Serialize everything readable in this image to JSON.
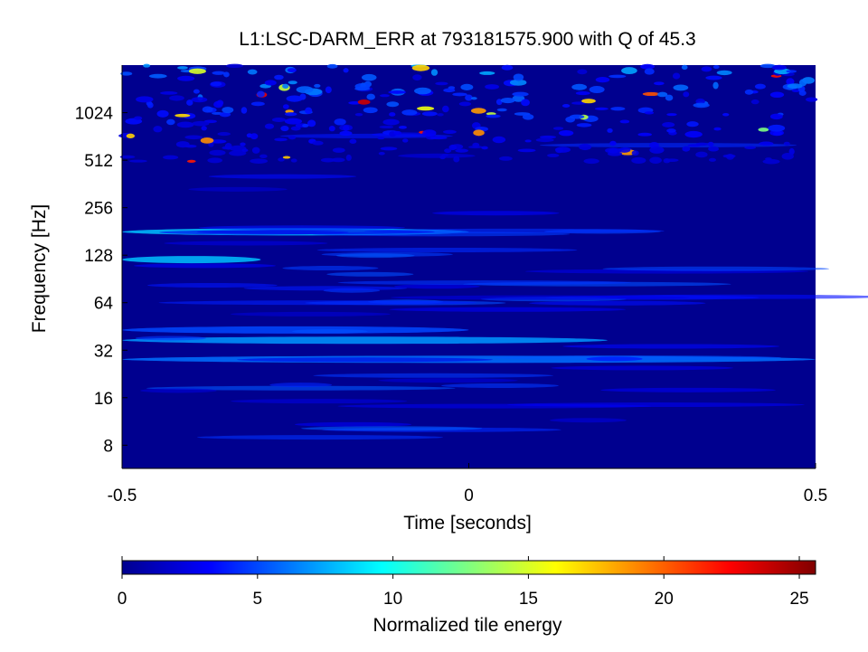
{
  "chart_data": {
    "type": "heatmap",
    "title": "L1:LSC-DARM_ERR at 793181575.900 with Q of 45.3",
    "xlabel": "Time [seconds]",
    "ylabel": "Frequency [Hz]",
    "x_scale": "linear",
    "y_scale": "log2",
    "xlim": [
      -0.5,
      0.5
    ],
    "ylim": [
      5.7,
      2050
    ],
    "x_ticks": [
      -0.5,
      0,
      0.5
    ],
    "x_tick_labels": [
      "-0.5",
      "0",
      "0.5"
    ],
    "y_ticks": [
      8,
      16,
      32,
      64,
      128,
      256,
      512,
      1024
    ],
    "y_tick_labels": [
      "8",
      "16",
      "32",
      "64",
      "128",
      "256",
      "512",
      "1024"
    ],
    "colormap": "jet",
    "colorbar": {
      "label": "Normalized tile energy",
      "range": [
        0,
        25.6
      ],
      "ticks": [
        0,
        5,
        10,
        15,
        20,
        25
      ],
      "tick_labels": [
        "0",
        "5",
        "10",
        "15",
        "20",
        "25"
      ],
      "position": "bottom"
    },
    "grid": false,
    "notable_features": [
      {
        "description": "broadband band near 37 Hz",
        "freq_hz": 37,
        "time_range": [
          -0.5,
          0.2
        ],
        "energy": 7
      },
      {
        "description": "band near 28 Hz",
        "freq_hz": 28,
        "time_range": [
          -0.5,
          0.5
        ],
        "energy": 6
      },
      {
        "description": "band near 43 Hz",
        "freq_hz": 43,
        "time_range": [
          -0.5,
          0.0
        ],
        "energy": 5
      },
      {
        "description": "band near 180 Hz",
        "freq_hz": 180,
        "time_range": [
          -0.5,
          0.0
        ],
        "energy": 8
      },
      {
        "description": "band near 120 Hz",
        "freq_hz": 120,
        "time_range": [
          -0.5,
          -0.3
        ],
        "energy": 8
      },
      {
        "description": "high-energy speckle above 1 kHz",
        "freq_hz": 1400,
        "time_range": [
          -0.5,
          0.5
        ],
        "energy": 20
      }
    ]
  }
}
